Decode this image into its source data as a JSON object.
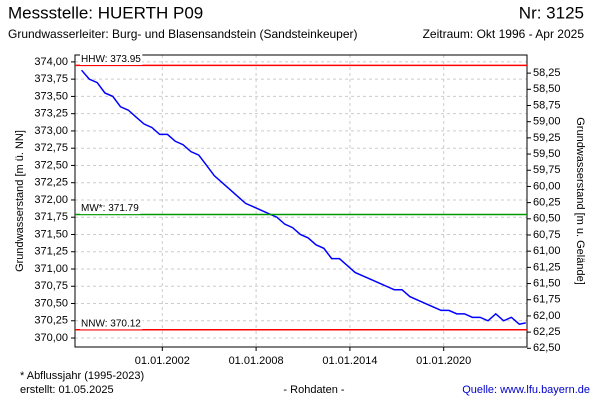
{
  "chart_data": {
    "type": "line",
    "title": "Messstelle: HUERTH P09",
    "number": "Nr: 3125",
    "aquifer": "Grundwasserleiter:  Burg- und Blasensandstein (Sandsteinkeuper)",
    "period": "Zeitraum: Okt 1996 - Apr 2025",
    "ylabel": "Grundwasserstand [m ü. NN]",
    "y2label": "Grundwasserstand [m u. Gelände]",
    "footnote": "* Abflussjahr (1995-2023)",
    "created": "erstellt:  01.05.2025",
    "note": "- Rohdaten -",
    "source": "Quelle:  www.lfu.bayern.de",
    "grid": true,
    "x": [
      "1996-11-01",
      "1997-05-01",
      "1997-11-01",
      "1998-05-01",
      "1998-11-01",
      "1999-05-01",
      "1999-11-01",
      "2000-05-01",
      "2000-11-01",
      "2001-05-01",
      "2001-11-01",
      "2002-05-01",
      "2002-11-01",
      "2003-05-01",
      "2003-11-01",
      "2004-05-01",
      "2004-11-01",
      "2005-05-01",
      "2005-11-01",
      "2006-05-01",
      "2006-11-01",
      "2007-05-01",
      "2007-11-01",
      "2008-05-01",
      "2008-11-01",
      "2009-05-01",
      "2009-11-01",
      "2010-05-01",
      "2010-11-01",
      "2011-05-01",
      "2011-11-01",
      "2012-05-01",
      "2012-11-01",
      "2013-05-01",
      "2013-11-01",
      "2014-05-01",
      "2014-11-01",
      "2015-05-01",
      "2015-11-01",
      "2016-05-01",
      "2016-11-01",
      "2017-05-01",
      "2017-11-01",
      "2018-05-01",
      "2018-11-01",
      "2019-05-01",
      "2019-11-01",
      "2020-05-01",
      "2020-11-01",
      "2021-05-01",
      "2021-11-01",
      "2022-05-01",
      "2022-11-01",
      "2023-05-01",
      "2023-11-01",
      "2024-05-01",
      "2024-11-01",
      "2025-04-01"
    ],
    "series": [
      {
        "name": "Grundwasserstand",
        "color": "#0000ff",
        "values": [
          373.88,
          373.75,
          373.7,
          373.55,
          373.5,
          373.35,
          373.3,
          373.2,
          373.1,
          373.05,
          372.95,
          372.95,
          372.85,
          372.8,
          372.7,
          372.65,
          372.5,
          372.35,
          372.25,
          372.15,
          372.05,
          371.95,
          371.9,
          371.85,
          371.8,
          371.75,
          371.65,
          371.6,
          371.5,
          371.45,
          371.35,
          371.3,
          371.15,
          371.15,
          371.05,
          370.95,
          370.9,
          370.85,
          370.8,
          370.75,
          370.7,
          370.7,
          370.6,
          370.55,
          370.5,
          370.45,
          370.4,
          370.4,
          370.35,
          370.35,
          370.3,
          370.3,
          370.25,
          370.35,
          370.25,
          370.3,
          370.2,
          370.22
        ]
      }
    ],
    "reference_lines": [
      {
        "label": "HHW: 373.95",
        "value": 373.95,
        "color": "#ff0000"
      },
      {
        "label": "MW*: 371.79",
        "value": 371.79,
        "color": "#009900"
      },
      {
        "label": "NNW: 370.12",
        "value": 370.12,
        "color": "#ff0000"
      }
    ],
    "xlim": [
      "1996-06-01",
      "2025-04-30"
    ],
    "xticks": [
      {
        "value": "2002-01-01",
        "label": "01.01.2002"
      },
      {
        "value": "2008-01-01",
        "label": "01.01.2008"
      },
      {
        "value": "2014-01-01",
        "label": "01.01.2014"
      },
      {
        "value": "2020-01-01",
        "label": "01.01.2020"
      }
    ],
    "ylim": [
      369.87,
      374.1
    ],
    "yticks": [
      {
        "value": 370,
        "label": "370,00"
      },
      {
        "value": 370.25,
        "label": "370,25"
      },
      {
        "value": 370.5,
        "label": "370,50"
      },
      {
        "value": 370.75,
        "label": "370,75"
      },
      {
        "value": 371,
        "label": "371,00"
      },
      {
        "value": 371.25,
        "label": "371,25"
      },
      {
        "value": 371.5,
        "label": "371,50"
      },
      {
        "value": 371.75,
        "label": "371,75"
      },
      {
        "value": 372,
        "label": "372,00"
      },
      {
        "value": 372.25,
        "label": "372,25"
      },
      {
        "value": 372.5,
        "label": "372,50"
      },
      {
        "value": 372.75,
        "label": "372,75"
      },
      {
        "value": 373,
        "label": "373,00"
      },
      {
        "value": 373.25,
        "label": "373,25"
      },
      {
        "value": 373.5,
        "label": "373,50"
      },
      {
        "value": 373.75,
        "label": "373,75"
      },
      {
        "value": 374,
        "label": "374,00"
      }
    ],
    "y2lim": [
      62.48,
      57.97
    ],
    "y2ticks": [
      {
        "value": 58.25,
        "label": "58,25"
      },
      {
        "value": 58.5,
        "label": "58,50"
      },
      {
        "value": 58.75,
        "label": "58,75"
      },
      {
        "value": 59,
        "label": "59,00"
      },
      {
        "value": 59.25,
        "label": "59,25"
      },
      {
        "value": 59.5,
        "label": "59,50"
      },
      {
        "value": 59.75,
        "label": "59,75"
      },
      {
        "value": 60,
        "label": "60,00"
      },
      {
        "value": 60.25,
        "label": "60,25"
      },
      {
        "value": 60.5,
        "label": "60,50"
      },
      {
        "value": 60.75,
        "label": "60,75"
      },
      {
        "value": 61,
        "label": "61,00"
      },
      {
        "value": 61.25,
        "label": "61,25"
      },
      {
        "value": 61.5,
        "label": "61,50"
      },
      {
        "value": 61.75,
        "label": "61,75"
      },
      {
        "value": 62,
        "label": "62,00"
      },
      {
        "value": 62.25,
        "label": "62,25"
      },
      {
        "value": 62.5,
        "label": "62,50"
      }
    ]
  }
}
